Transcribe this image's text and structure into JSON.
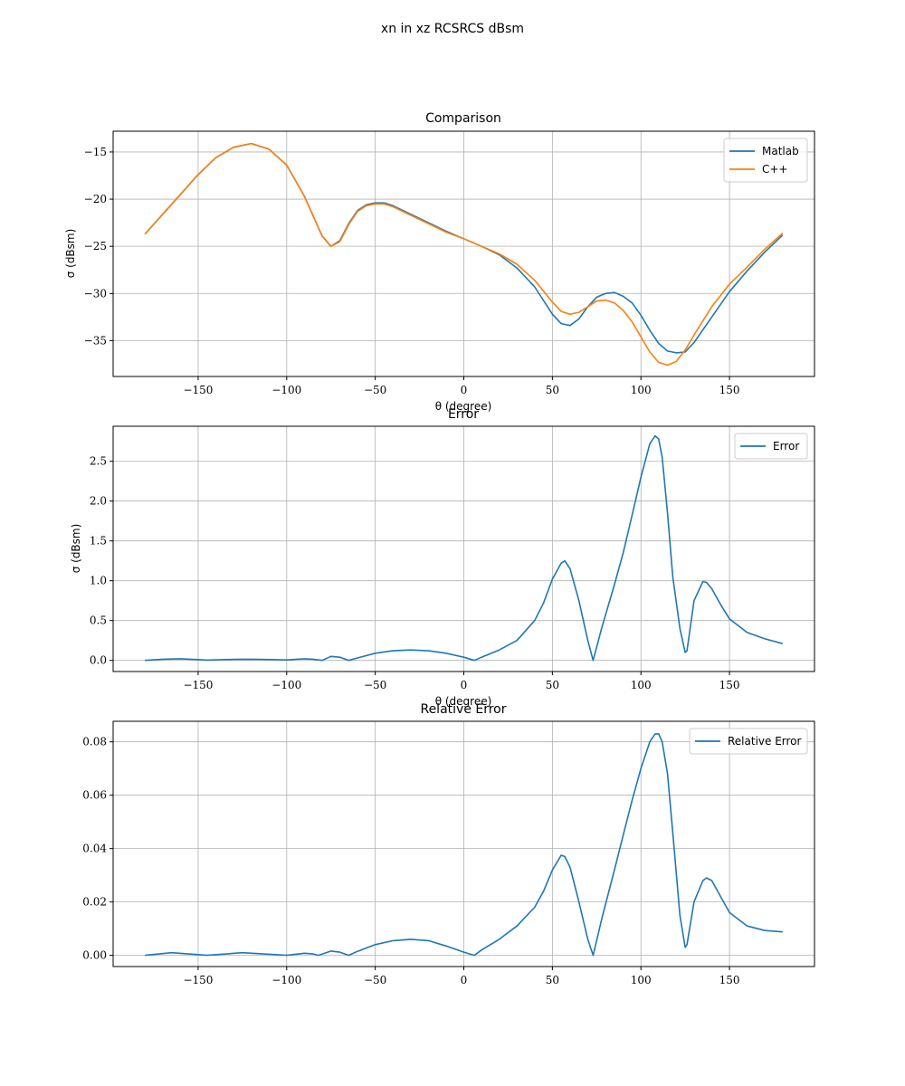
{
  "figure_title": "xn in xz RCSRCS dBsm",
  "colors": {
    "matlab": "#1f77b4",
    "cpp": "#ff7f0e",
    "grid": "#b0b0b0"
  },
  "chart_data": [
    {
      "type": "line",
      "title": "Comparison",
      "xlabel": "θ (degree)",
      "ylabel": "σ (dBsm)",
      "xlim": [
        -198,
        198
      ],
      "ylim": [
        -38.8,
        -12.8
      ],
      "xticks": [
        -150,
        -100,
        -50,
        0,
        50,
        100,
        150
      ],
      "xtick_labels": [
        "−150",
        "−100",
        "−50",
        "0",
        "50",
        "100",
        "150"
      ],
      "yticks": [
        -35,
        -30,
        -25,
        -20,
        -15
      ],
      "ytick_labels": [
        "−35",
        "−30",
        "−25",
        "−20",
        "−15"
      ],
      "legend_position": "upper right",
      "series": [
        {
          "name": "Matlab",
          "color": "#1f77b4",
          "x": [
            -180,
            -170,
            -160,
            -150,
            -140,
            -130,
            -120,
            -110,
            -100,
            -90,
            -85,
            -80,
            -75,
            -70,
            -65,
            -60,
            -55,
            -50,
            -45,
            -40,
            -30,
            -20,
            -10,
            0,
            10,
            20,
            30,
            40,
            50,
            55,
            60,
            65,
            70,
            75,
            80,
            85,
            90,
            95,
            100,
            105,
            110,
            115,
            120,
            125,
            130,
            140,
            150,
            160,
            170,
            180
          ],
          "y": [
            -23.7,
            -21.6,
            -19.5,
            -17.4,
            -15.6,
            -14.5,
            -14.1,
            -14.7,
            -16.4,
            -19.7,
            -21.8,
            -23.9,
            -25.0,
            -24.4,
            -22.6,
            -21.2,
            -20.6,
            -20.4,
            -20.4,
            -20.7,
            -21.6,
            -22.5,
            -23.4,
            -24.2,
            -25.0,
            -25.9,
            -27.3,
            -29.3,
            -32.2,
            -33.2,
            -33.4,
            -32.7,
            -31.4,
            -30.4,
            -30.0,
            -29.9,
            -30.3,
            -31.0,
            -32.3,
            -33.9,
            -35.3,
            -36.1,
            -36.3,
            -36.2,
            -35.2,
            -32.5,
            -29.8,
            -27.6,
            -25.6,
            -23.8
          ]
        },
        {
          "name": "C++",
          "color": "#ff7f0e",
          "x": [
            -180,
            -170,
            -160,
            -150,
            -140,
            -130,
            -120,
            -110,
            -100,
            -90,
            -85,
            -80,
            -75,
            -70,
            -65,
            -60,
            -55,
            -50,
            -45,
            -40,
            -30,
            -20,
            -10,
            0,
            10,
            20,
            30,
            40,
            50,
            55,
            60,
            65,
            70,
            75,
            80,
            85,
            90,
            95,
            100,
            105,
            110,
            115,
            120,
            125,
            130,
            140,
            150,
            160,
            170,
            180
          ],
          "y": [
            -23.7,
            -21.6,
            -19.5,
            -17.4,
            -15.6,
            -14.5,
            -14.1,
            -14.7,
            -16.4,
            -19.7,
            -21.8,
            -23.9,
            -25.0,
            -24.5,
            -22.7,
            -21.3,
            -20.7,
            -20.5,
            -20.5,
            -20.8,
            -21.7,
            -22.6,
            -23.5,
            -24.2,
            -25.0,
            -25.8,
            -26.9,
            -28.6,
            -30.9,
            -31.9,
            -32.2,
            -32.0,
            -31.4,
            -30.8,
            -30.7,
            -31.0,
            -31.8,
            -33.0,
            -34.6,
            -36.2,
            -37.3,
            -37.6,
            -37.2,
            -36.0,
            -34.4,
            -31.4,
            -29.0,
            -27.2,
            -25.3,
            -23.6
          ]
        }
      ]
    },
    {
      "type": "line",
      "title": "Error",
      "xlabel": "θ (degree)",
      "ylabel": "σ (dBsm)",
      "xlim": [
        -198,
        198
      ],
      "ylim": [
        -0.14,
        2.94
      ],
      "xticks": [
        -150,
        -100,
        -50,
        0,
        50,
        100,
        150
      ],
      "xtick_labels": [
        "−150",
        "−100",
        "−50",
        "0",
        "50",
        "100",
        "150"
      ],
      "yticks": [
        0.0,
        0.5,
        1.0,
        1.5,
        2.0,
        2.5
      ],
      "ytick_labels": [
        "0.0",
        "0.5",
        "1.0",
        "1.5",
        "2.0",
        "2.5"
      ],
      "legend_position": "upper right",
      "series": [
        {
          "name": "Error",
          "color": "#1f77b4",
          "x": [
            -180,
            -170,
            -160,
            -150,
            -145,
            -135,
            -125,
            -115,
            -100,
            -90,
            -85,
            -80,
            -75,
            -70,
            -65,
            -60,
            -50,
            -40,
            -30,
            -20,
            -10,
            0,
            6,
            10,
            20,
            30,
            40,
            45,
            50,
            55,
            57,
            60,
            65,
            70,
            73,
            78,
            85,
            90,
            95,
            100,
            105,
            108,
            110,
            112,
            115,
            118,
            122,
            125,
            126,
            130,
            135,
            137,
            140,
            145,
            150,
            160,
            170,
            180
          ],
          "y": [
            0.0,
            0.015,
            0.02,
            0.01,
            0.003,
            0.01,
            0.015,
            0.012,
            0.005,
            0.02,
            0.015,
            0.0,
            0.05,
            0.04,
            0.0,
            0.03,
            0.09,
            0.12,
            0.13,
            0.12,
            0.09,
            0.04,
            0.0,
            0.04,
            0.13,
            0.25,
            0.5,
            0.72,
            1.02,
            1.22,
            1.25,
            1.15,
            0.75,
            0.25,
            0.0,
            0.42,
            0.95,
            1.35,
            1.82,
            2.3,
            2.72,
            2.82,
            2.78,
            2.55,
            1.85,
            1.05,
            0.4,
            0.1,
            0.12,
            0.75,
            0.99,
            0.98,
            0.9,
            0.7,
            0.52,
            0.35,
            0.27,
            0.21
          ]
        }
      ]
    },
    {
      "type": "line",
      "title": "Relative Error",
      "xlabel": "",
      "ylabel": "",
      "xlim": [
        -198,
        198
      ],
      "ylim": [
        -0.0042,
        0.0877
      ],
      "xticks": [
        -150,
        -100,
        -50,
        0,
        50,
        100,
        150
      ],
      "xtick_labels": [
        "−150",
        "−100",
        "−50",
        "0",
        "50",
        "100",
        "150"
      ],
      "yticks": [
        0.0,
        0.02,
        0.04,
        0.06,
        0.08
      ],
      "ytick_labels": [
        "0.00",
        "0.02",
        "0.04",
        "0.06",
        "0.08"
      ],
      "legend_position": "upper right",
      "series": [
        {
          "name": "Relative Error",
          "color": "#1f77b4",
          "x": [
            -180,
            -165,
            -145,
            -125,
            -100,
            -90,
            -85,
            -82,
            -75,
            -70,
            -65,
            -60,
            -50,
            -40,
            -30,
            -20,
            -10,
            0,
            6,
            10,
            20,
            30,
            40,
            45,
            50,
            55,
            57,
            60,
            65,
            70,
            73,
            78,
            85,
            90,
            95,
            100,
            105,
            108,
            110,
            112,
            115,
            118,
            122,
            125,
            126,
            130,
            135,
            137,
            140,
            145,
            150,
            160,
            170,
            180
          ],
          "y": [
            0.0,
            0.001,
            0.0,
            0.001,
            0.0,
            0.0008,
            0.0005,
            0.0,
            0.0016,
            0.0012,
            0.0,
            0.0015,
            0.004,
            0.0055,
            0.006,
            0.0055,
            0.0035,
            0.0012,
            0.0,
            0.002,
            0.006,
            0.011,
            0.018,
            0.024,
            0.032,
            0.0375,
            0.037,
            0.033,
            0.02,
            0.006,
            0.0,
            0.014,
            0.032,
            0.045,
            0.058,
            0.07,
            0.08,
            0.083,
            0.083,
            0.08,
            0.068,
            0.046,
            0.015,
            0.003,
            0.004,
            0.02,
            0.028,
            0.029,
            0.028,
            0.022,
            0.016,
            0.011,
            0.0093,
            0.0088
          ]
        }
      ]
    }
  ]
}
